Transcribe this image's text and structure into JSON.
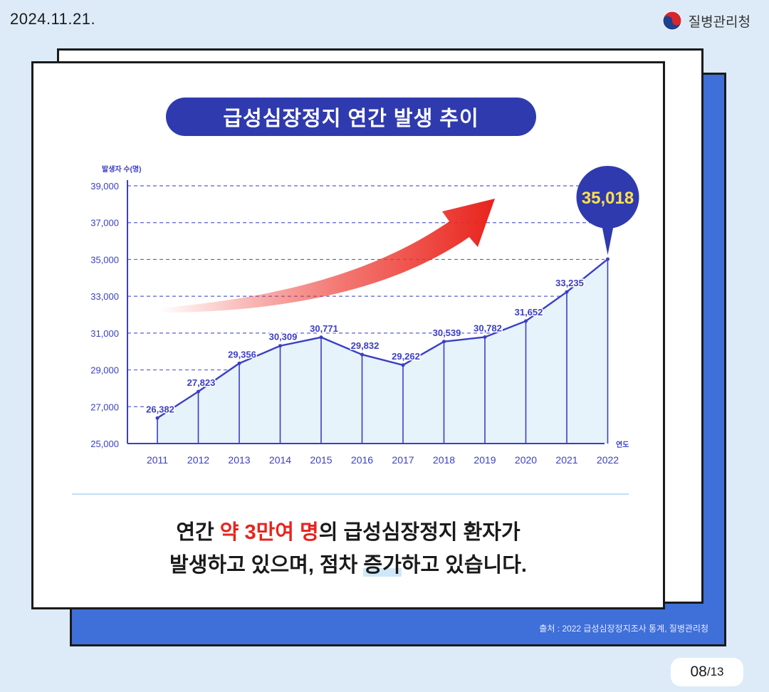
{
  "date": "2024.11.21.",
  "org_name": "질병관리청",
  "page": {
    "current": "08",
    "total": "/13"
  },
  "caption": {
    "part1": "연간 ",
    "highlight": "약 3만여 명",
    "part2": "의 급성심장정지 환자가",
    "part3": "발생하고 있으며, 점차 ",
    "underlined": "증가",
    "part4": "하고 있습니다."
  },
  "source": "출처 : 2022 급성심장정지조사 통계, 질병관리청",
  "colors": {
    "background": "#dcebf7",
    "accent_blue": "#3f6fd8",
    "title_navy": "#2f3aae",
    "line": "#3b3fc2",
    "fill": "#e6f3fb",
    "arrow_red": "#e8231c",
    "callout_yellow": "#ffe14a"
  },
  "chart_data": {
    "type": "area",
    "title": "급성심장정지 연간 발생 추이",
    "ylabel": "발생자 수(명)",
    "xlabel": "연도",
    "categories": [
      "2011",
      "2012",
      "2013",
      "2014",
      "2015",
      "2016",
      "2017",
      "2018",
      "2019",
      "2020",
      "2021",
      "2022"
    ],
    "values": [
      26382,
      27823,
      29356,
      30309,
      30771,
      29832,
      29262,
      30539,
      30782,
      31652,
      33235,
      35018
    ],
    "value_labels": [
      "26,382",
      "27,823",
      "29,356",
      "30,309",
      "30,771",
      "29,832",
      "29,262",
      "30,539",
      "30,782",
      "31,652",
      "33,235",
      ""
    ],
    "y_ticks": [
      "25,000",
      "27,000",
      "29,000",
      "31,000",
      "33,000",
      "35,000",
      "37,000",
      "39,000"
    ],
    "y_tick_values": [
      25000,
      27000,
      29000,
      31000,
      33000,
      35000,
      37000,
      39000
    ],
    "ylim": [
      25000,
      39000
    ],
    "grid": true,
    "callout": "35,018"
  }
}
